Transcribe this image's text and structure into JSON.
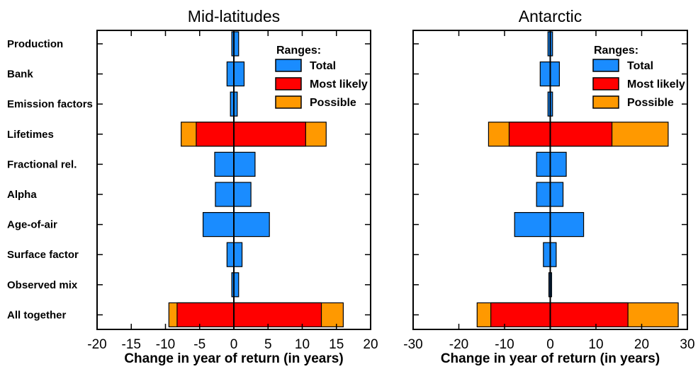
{
  "colors": {
    "total": "#1a8cff",
    "most_likely": "#ff0000",
    "possible": "#ff9900",
    "axis": "#000000"
  },
  "legend": {
    "title": "Ranges:",
    "items": [
      {
        "key": "total",
        "label": "Total"
      },
      {
        "key": "most_likely",
        "label": "Most likely"
      },
      {
        "key": "possible",
        "label": "Possible"
      }
    ]
  },
  "chart_data": [
    {
      "type": "bar",
      "orientation": "horizontal",
      "title": "Mid-latitudes",
      "xlabel": "Change in year of return (in years)",
      "ylabel": "",
      "xlim": [
        -20,
        20
      ],
      "xticks": [
        -20,
        -15,
        -10,
        -5,
        0,
        5,
        10,
        15,
        20
      ],
      "categories": [
        "Production",
        "Bank",
        "Emission factors",
        "Lifetimes",
        "Fractional rel.",
        "Alpha",
        "Age-of-air",
        "Surface factor",
        "Observed mix",
        "All together"
      ],
      "series": [
        {
          "name": "Total",
          "key": "total",
          "ranges": [
            [
              -0.3,
              0.7
            ],
            [
              -1.0,
              1.5
            ],
            [
              -0.5,
              0.5
            ],
            null,
            [
              -2.8,
              3.1
            ],
            [
              -2.7,
              2.5
            ],
            [
              -4.5,
              5.2
            ],
            [
              -1.0,
              1.2
            ],
            [
              -0.3,
              0.7
            ],
            null
          ]
        },
        {
          "name": "Possible",
          "key": "possible",
          "ranges": [
            null,
            null,
            null,
            [
              -7.7,
              13.5
            ],
            null,
            null,
            null,
            null,
            null,
            [
              -9.5,
              16.0
            ]
          ]
        },
        {
          "name": "Most likely",
          "key": "most_likely",
          "ranges": [
            null,
            null,
            null,
            [
              -5.5,
              10.5
            ],
            null,
            null,
            null,
            null,
            null,
            [
              -8.3,
              12.8
            ]
          ]
        }
      ]
    },
    {
      "type": "bar",
      "orientation": "horizontal",
      "title": "Antarctic",
      "xlabel": "Change in year of return (in years)",
      "ylabel": "",
      "xlim": [
        -30,
        30
      ],
      "xticks": [
        -30,
        -20,
        -10,
        0,
        10,
        20,
        30
      ],
      "categories": [
        "Production",
        "Bank",
        "Emission factors",
        "Lifetimes",
        "Fractional rel.",
        "Alpha",
        "Age-of-air",
        "Surface factor",
        "Observed mix",
        "All together"
      ],
      "series": [
        {
          "name": "Total",
          "key": "total",
          "ranges": [
            [
              -0.5,
              0.5
            ],
            [
              -2.2,
              2.0
            ],
            [
              -0.5,
              0.5
            ],
            null,
            [
              -3.0,
              3.5
            ],
            [
              -3.0,
              2.8
            ],
            [
              -7.8,
              7.3
            ],
            [
              -1.5,
              1.3
            ],
            [
              -0.3,
              0.3
            ],
            null
          ]
        },
        {
          "name": "Possible",
          "key": "possible",
          "ranges": [
            null,
            null,
            null,
            [
              -13.5,
              25.8
            ],
            null,
            null,
            null,
            null,
            null,
            [
              -16.0,
              28.0
            ]
          ]
        },
        {
          "name": "Most likely",
          "key": "most_likely",
          "ranges": [
            null,
            null,
            null,
            [
              -9.0,
              13.5
            ],
            null,
            null,
            null,
            null,
            null,
            [
              -13.0,
              17.0
            ]
          ]
        }
      ]
    }
  ]
}
